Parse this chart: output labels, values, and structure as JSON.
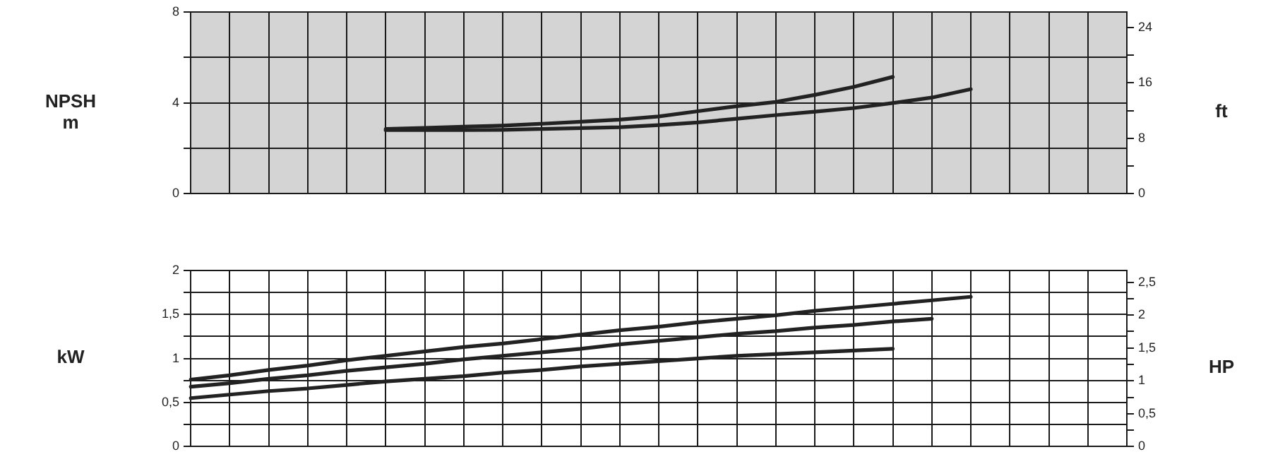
{
  "chart_data": [
    {
      "type": "line",
      "ylabel": "NPSH\nm",
      "y2label": "ft",
      "grid": true,
      "legend": false,
      "marker": "none",
      "line_style": "solid",
      "categories": [
        null,
        null,
        null,
        null,
        null,
        null,
        null,
        null,
        null,
        null,
        null,
        null,
        null,
        null,
        null,
        null,
        null,
        null,
        null,
        null,
        null,
        null,
        null,
        null,
        null
      ],
      "ylim": [
        0,
        8
      ],
      "yticks": [
        0,
        {
          "value": 2,
          "label": null
        },
        4,
        {
          "value": 6,
          "label": null
        },
        8
      ],
      "y2lim": [
        0,
        26.25
      ],
      "y2ticks": [
        0,
        {
          "value": 4,
          "label": null
        },
        8,
        {
          "value": 12,
          "label": null
        },
        16,
        {
          "value": 20,
          "label": null
        },
        24
      ],
      "series": [
        {
          "color": "#222222",
          "values": [
            null,
            null,
            null,
            null,
            null,
            2.85,
            2.9,
            2.95,
            3.0,
            3.08,
            3.17,
            3.26,
            3.4,
            3.63,
            3.85,
            4.04,
            4.35,
            4.7,
            5.14,
            null,
            null,
            null,
            null,
            null,
            null
          ]
        },
        {
          "color": "#222222",
          "values": [
            null,
            null,
            null,
            null,
            null,
            2.8,
            2.8,
            2.8,
            2.81,
            2.85,
            2.89,
            2.93,
            3.02,
            3.14,
            3.3,
            3.46,
            3.61,
            3.77,
            3.99,
            4.23,
            4.6,
            null,
            null,
            null,
            null
          ]
        }
      ]
    },
    {
      "type": "line",
      "ylabel": "kW",
      "y2label": "HP",
      "grid": true,
      "legend": false,
      "marker": "none",
      "line_style": "solid",
      "categories": [
        null,
        null,
        null,
        null,
        null,
        null,
        null,
        null,
        null,
        null,
        null,
        null,
        null,
        null,
        null,
        null,
        null,
        null,
        null,
        null,
        null,
        null,
        null,
        null,
        null
      ],
      "ylim": [
        0,
        2
      ],
      "yticks": [
        0,
        {
          "value": 0.25,
          "label": null
        },
        {
          "value": 0.5,
          "label": "0,5"
        },
        {
          "value": 0.75,
          "label": null
        },
        1,
        {
          "value": 1.25,
          "label": null
        },
        {
          "value": 1.5,
          "label": "1,5"
        },
        {
          "value": 1.75,
          "label": null
        },
        2
      ],
      "y2lim": [
        0,
        2.68
      ],
      "y2ticks": [
        0,
        {
          "value": 0.25,
          "label": null
        },
        {
          "value": 0.5,
          "label": "0,5"
        },
        {
          "value": 0.75,
          "label": null
        },
        1,
        {
          "value": 1.25,
          "label": null
        },
        {
          "value": 1.5,
          "label": "1,5"
        },
        {
          "value": 1.75,
          "label": null
        },
        2,
        {
          "value": 2.25,
          "label": null
        },
        {
          "value": 2.5,
          "label": "2,5"
        }
      ],
      "series": [
        {
          "color": "#222222",
          "values": [
            0.76,
            0.81,
            0.87,
            0.92,
            0.98,
            1.03,
            1.08,
            1.13,
            1.17,
            1.22,
            1.27,
            1.32,
            1.36,
            1.41,
            1.45,
            1.49,
            1.54,
            1.58,
            1.62,
            1.66,
            1.7,
            null,
            null,
            null,
            null
          ]
        },
        {
          "color": "#222222",
          "values": [
            0.68,
            0.72,
            0.77,
            0.81,
            0.86,
            0.9,
            0.94,
            0.99,
            1.03,
            1.07,
            1.11,
            1.16,
            1.2,
            1.24,
            1.28,
            1.31,
            1.35,
            1.38,
            1.42,
            1.45,
            null,
            null,
            null,
            null,
            null
          ]
        },
        {
          "color": "#222222",
          "values": [
            0.55,
            0.59,
            0.63,
            0.66,
            0.7,
            0.74,
            0.77,
            0.8,
            0.84,
            0.87,
            0.91,
            0.94,
            0.97,
            1.0,
            1.03,
            1.05,
            1.07,
            1.09,
            1.11,
            null,
            null,
            null,
            null,
            null,
            null
          ]
        }
      ]
    }
  ]
}
